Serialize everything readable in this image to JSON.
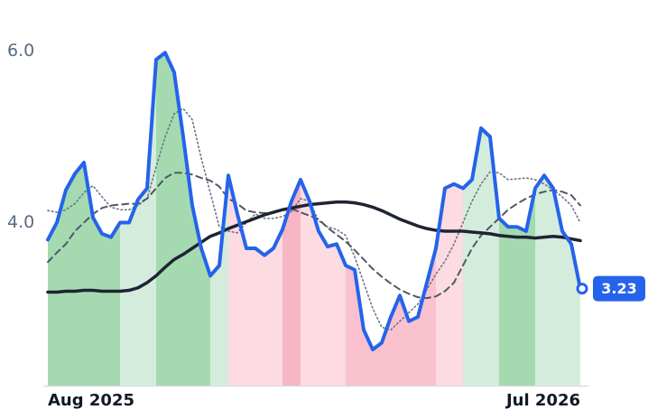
{
  "chart_data": {
    "type": "line",
    "x": [
      0,
      1,
      2,
      3,
      4,
      5,
      6,
      7,
      8,
      9,
      10,
      11,
      12,
      13,
      14,
      15,
      16,
      17,
      18,
      19,
      20,
      21,
      22,
      23,
      24,
      25,
      26,
      27,
      28,
      29,
      30,
      31,
      32,
      33,
      34,
      35,
      36,
      37,
      38,
      39,
      40,
      41,
      42,
      43,
      44,
      45,
      46,
      47,
      48,
      49,
      50,
      51,
      52,
      53,
      54,
      55,
      56,
      57,
      58,
      59
    ],
    "xlim": [
      0,
      59
    ],
    "xticks": [
      {
        "value": 0,
        "label": "Aug 2025"
      },
      {
        "value": 59,
        "label": "Jul 2026"
      }
    ],
    "ylim": [
      2.1,
      6.1
    ],
    "yticks": [
      {
        "value": 4,
        "label": "4.0"
      },
      {
        "value": 6,
        "label": "6.0"
      }
    ],
    "regions": [
      {
        "from": 0,
        "to": 8,
        "color": "#a5dab1"
      },
      {
        "from": 8,
        "to": 12,
        "color": "#d4ecdc"
      },
      {
        "from": 12,
        "to": 18,
        "color": "#a5dab1"
      },
      {
        "from": 18,
        "to": 20,
        "color": "#d4ecdc"
      },
      {
        "from": 20,
        "to": 26,
        "color": "#fcdbe2"
      },
      {
        "from": 26,
        "to": 28,
        "color": "#f8b5c4"
      },
      {
        "from": 28,
        "to": 33,
        "color": "#fcdbe2"
      },
      {
        "from": 33,
        "to": 43,
        "color": "#f9c2ce"
      },
      {
        "from": 43,
        "to": 46,
        "color": "#fcdbe2"
      },
      {
        "from": 46,
        "to": 50,
        "color": "#d4ecdc"
      },
      {
        "from": 50,
        "to": 54,
        "color": "#a5dab1"
      },
      {
        "from": 54,
        "to": 59,
        "color": "#d4ecdc"
      }
    ],
    "series": [
      {
        "color": "#6b7585",
        "dash": "dotted",
        "values": [
          4.14,
          4.12,
          4.15,
          4.22,
          4.35,
          4.43,
          4.3,
          4.18,
          4.15,
          4.15,
          4.2,
          4.28,
          4.65,
          5.0,
          5.27,
          5.33,
          5.2,
          4.75,
          4.35,
          3.95,
          3.9,
          3.88,
          4.0,
          4.1,
          4.05,
          4.05,
          4.07,
          4.13,
          4.28,
          4.25,
          4.02,
          3.95,
          3.92,
          3.85,
          3.6,
          3.3,
          3.0,
          2.78,
          2.75,
          2.85,
          2.95,
          3.05,
          3.22,
          3.4,
          3.55,
          3.75,
          4.0,
          4.25,
          4.45,
          4.59,
          4.58,
          4.5,
          4.51,
          4.52,
          4.5,
          4.45,
          4.38,
          4.3,
          4.2,
          4.0
        ]
      },
      {
        "color": "#4f5866",
        "dash": "dashed",
        "values": [
          3.54,
          3.65,
          3.75,
          3.9,
          4.0,
          4.1,
          4.17,
          4.2,
          4.21,
          4.22,
          4.22,
          4.28,
          4.4,
          4.52,
          4.58,
          4.58,
          4.56,
          4.52,
          4.49,
          4.42,
          4.28,
          4.22,
          4.14,
          4.12,
          4.11,
          4.12,
          4.15,
          4.16,
          4.12,
          4.08,
          4.04,
          3.94,
          3.86,
          3.78,
          3.68,
          3.57,
          3.46,
          3.37,
          3.29,
          3.22,
          3.17,
          3.13,
          3.12,
          3.14,
          3.2,
          3.3,
          3.5,
          3.7,
          3.85,
          3.95,
          4.05,
          4.15,
          4.22,
          4.28,
          4.33,
          4.36,
          4.38,
          4.36,
          4.32,
          4.2
        ]
      },
      {
        "color": "#1e2433",
        "dash": "solid",
        "values": [
          3.19,
          3.19,
          3.2,
          3.2,
          3.21,
          3.21,
          3.2,
          3.2,
          3.2,
          3.21,
          3.24,
          3.3,
          3.38,
          3.48,
          3.57,
          3.63,
          3.7,
          3.77,
          3.84,
          3.88,
          3.93,
          3.97,
          4.01,
          4.05,
          4.09,
          4.12,
          4.15,
          4.17,
          4.19,
          4.21,
          4.22,
          4.23,
          4.24,
          4.24,
          4.23,
          4.21,
          4.18,
          4.14,
          4.09,
          4.04,
          4.0,
          3.96,
          3.93,
          3.91,
          3.9,
          3.9,
          3.9,
          3.89,
          3.88,
          3.87,
          3.85,
          3.84,
          3.83,
          3.83,
          3.82,
          3.83,
          3.84,
          3.83,
          3.81,
          3.79
        ]
      },
      {
        "color": "#2563eb",
        "dash": "solid",
        "values": [
          3.8,
          4.0,
          4.38,
          4.57,
          4.7,
          4.06,
          3.87,
          3.83,
          4.0,
          4.0,
          4.27,
          4.4,
          5.9,
          5.98,
          5.75,
          5.0,
          4.2,
          3.7,
          3.38,
          3.5,
          4.55,
          4.1,
          3.7,
          3.7,
          3.62,
          3.7,
          3.92,
          4.25,
          4.5,
          4.25,
          3.9,
          3.72,
          3.75,
          3.5,
          3.45,
          2.75,
          2.52,
          2.6,
          2.9,
          3.15,
          2.85,
          2.9,
          3.3,
          3.7,
          4.4,
          4.45,
          4.4,
          4.5,
          5.1,
          5.0,
          4.05,
          3.95,
          3.95,
          3.9,
          4.4,
          4.55,
          4.4,
          3.9,
          3.75,
          3.23
        ]
      }
    ]
  }
}
